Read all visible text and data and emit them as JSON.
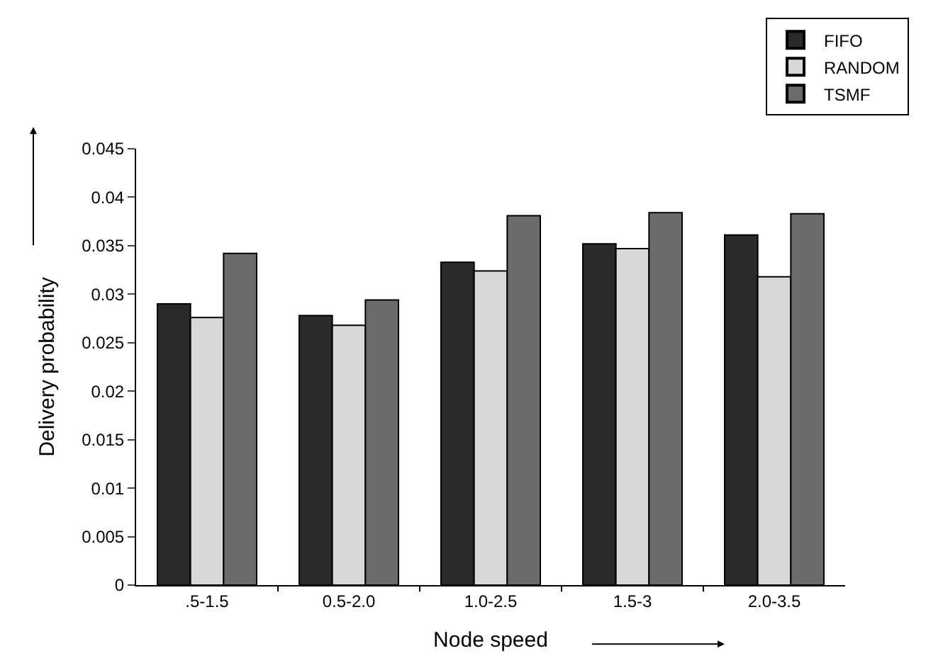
{
  "chart_data": {
    "type": "bar",
    "xlabel": "Node speed",
    "ylabel": "Delivery probability",
    "categories": [
      ".5-1.5",
      "0.5-2.0",
      "1.0-2.5",
      "1.5-3",
      "2.0-3.5"
    ],
    "series": [
      {
        "name": "FIFO",
        "color": "#2a2a2a",
        "values": [
          0.029,
          0.0278,
          0.0333,
          0.0352,
          0.0361
        ]
      },
      {
        "name": "RANDOM",
        "color": "#d9d9d9",
        "values": [
          0.0276,
          0.0268,
          0.0324,
          0.0347,
          0.0318
        ]
      },
      {
        "name": "TSMF",
        "color": "#6b6b6b",
        "values": [
          0.0342,
          0.0294,
          0.0381,
          0.0384,
          0.0383
        ]
      }
    ],
    "ylim": [
      0,
      0.045
    ],
    "yticks": [
      0,
      0.005,
      0.01,
      0.015,
      0.02,
      0.025,
      0.03,
      0.035,
      0.04,
      0.045
    ],
    "legend": "top right"
  }
}
